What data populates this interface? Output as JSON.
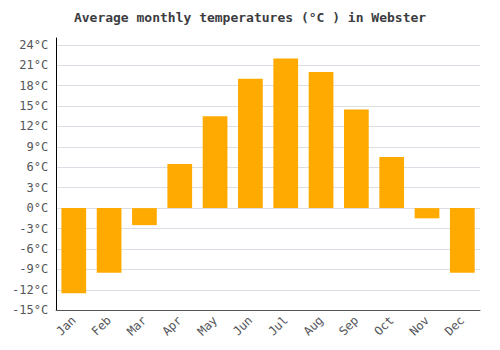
{
  "chart_data": {
    "type": "bar",
    "title": "Average monthly temperatures (°C ) in Webster",
    "categories": [
      "Jan",
      "Feb",
      "Mar",
      "Apr",
      "May",
      "Jun",
      "Jul",
      "Aug",
      "Sep",
      "Oct",
      "Nov",
      "Dec"
    ],
    "values": [
      -12.5,
      -9.5,
      -2.5,
      6.5,
      13.5,
      19.0,
      22.0,
      20.0,
      14.5,
      7.5,
      -1.5,
      -9.5
    ],
    "color": "#FFAA00",
    "ylim": [
      -15,
      25
    ],
    "yticks": [
      {
        "value": -15,
        "label": "-15°C"
      },
      {
        "value": -12,
        "label": "-12°C"
      },
      {
        "value": -9,
        "label": "-9°C"
      },
      {
        "value": -6,
        "label": "-6°C"
      },
      {
        "value": -3,
        "label": "-3°C"
      },
      {
        "value": 0,
        "label": "0°C"
      },
      {
        "value": 3,
        "label": "3°C"
      },
      {
        "value": 6,
        "label": "6°C"
      },
      {
        "value": 9,
        "label": "9°C"
      },
      {
        "value": 12,
        "label": "12°C"
      },
      {
        "value": 15,
        "label": "15°C"
      },
      {
        "value": 18,
        "label": "18°C"
      },
      {
        "value": 21,
        "label": "21°C"
      },
      {
        "value": 24,
        "label": "24°C"
      }
    ],
    "grid": true
  }
}
